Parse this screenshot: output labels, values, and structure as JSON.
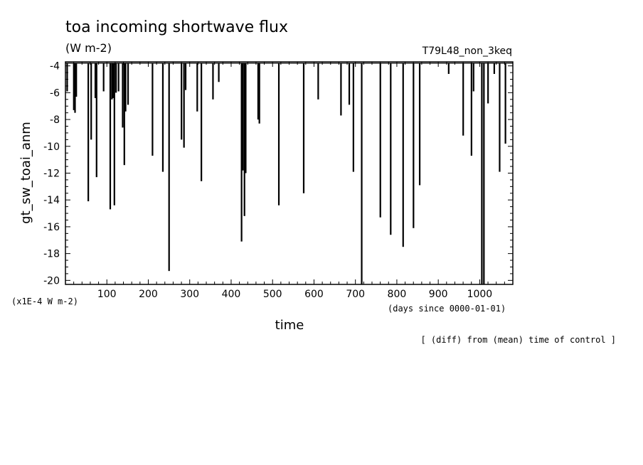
{
  "chart_data": {
    "type": "bar",
    "title": "toa incoming shortwave flux",
    "unit_label": "(W m-2)",
    "case_label": "T79L48_non_3keq",
    "xlabel": "time",
    "ylabel": "gt_sw_toai_anm",
    "x_unit_note": "(days since 0000-01-01)",
    "y_scale_note": "(x1E-4 W m-2)",
    "footnote": "[ (diff) from (mean) time of control ]",
    "xlim": [
      0,
      1080
    ],
    "ylim": [
      -20.3,
      -3.7
    ],
    "baseline": -3.8,
    "x_ticks": [
      "100",
      "200",
      "300",
      "400",
      "500",
      "600",
      "700",
      "800",
      "900",
      "1000"
    ],
    "y_ticks": [
      "-4",
      "-6",
      "-8",
      "-10",
      "-12",
      "-14",
      "-16",
      "-18",
      "-20"
    ],
    "x": [
      4,
      20,
      23,
      26,
      55,
      62,
      72,
      75,
      92,
      108,
      112,
      115,
      118,
      122,
      128,
      138,
      142,
      145,
      151,
      210,
      235,
      250,
      280,
      286,
      290,
      318,
      328,
      356,
      370,
      425,
      428,
      432,
      435,
      465,
      468,
      515,
      575,
      610,
      665,
      685,
      695,
      715,
      760,
      785,
      815,
      840,
      855,
      925,
      960,
      980,
      985,
      1005,
      1010,
      1020,
      1035,
      1048,
      1062
    ],
    "values": [
      -5.9,
      -7.3,
      -7.5,
      -6.3,
      -14.1,
      -9.5,
      -6.4,
      -12.3,
      -5.9,
      -14.7,
      -6.5,
      -6.4,
      -14.4,
      -6.0,
      -5.9,
      -8.6,
      -11.4,
      -7.4,
      -6.9,
      -10.7,
      -11.9,
      -19.3,
      -9.5,
      -10.1,
      -5.8,
      -7.4,
      -12.6,
      -6.5,
      -5.2,
      -17.1,
      -11.8,
      -15.2,
      -12.0,
      -8.0,
      -8.3,
      -14.4,
      -13.5,
      -6.5,
      -7.7,
      -6.9,
      -11.9,
      -20.3,
      -15.3,
      -16.6,
      -17.5,
      -16.1,
      -12.9,
      -4.6,
      -9.2,
      -10.7,
      -5.9,
      -20.3,
      -20.3,
      -6.8,
      -4.6,
      -11.9,
      -9.8
    ],
    "grid": false,
    "legend": "none"
  }
}
